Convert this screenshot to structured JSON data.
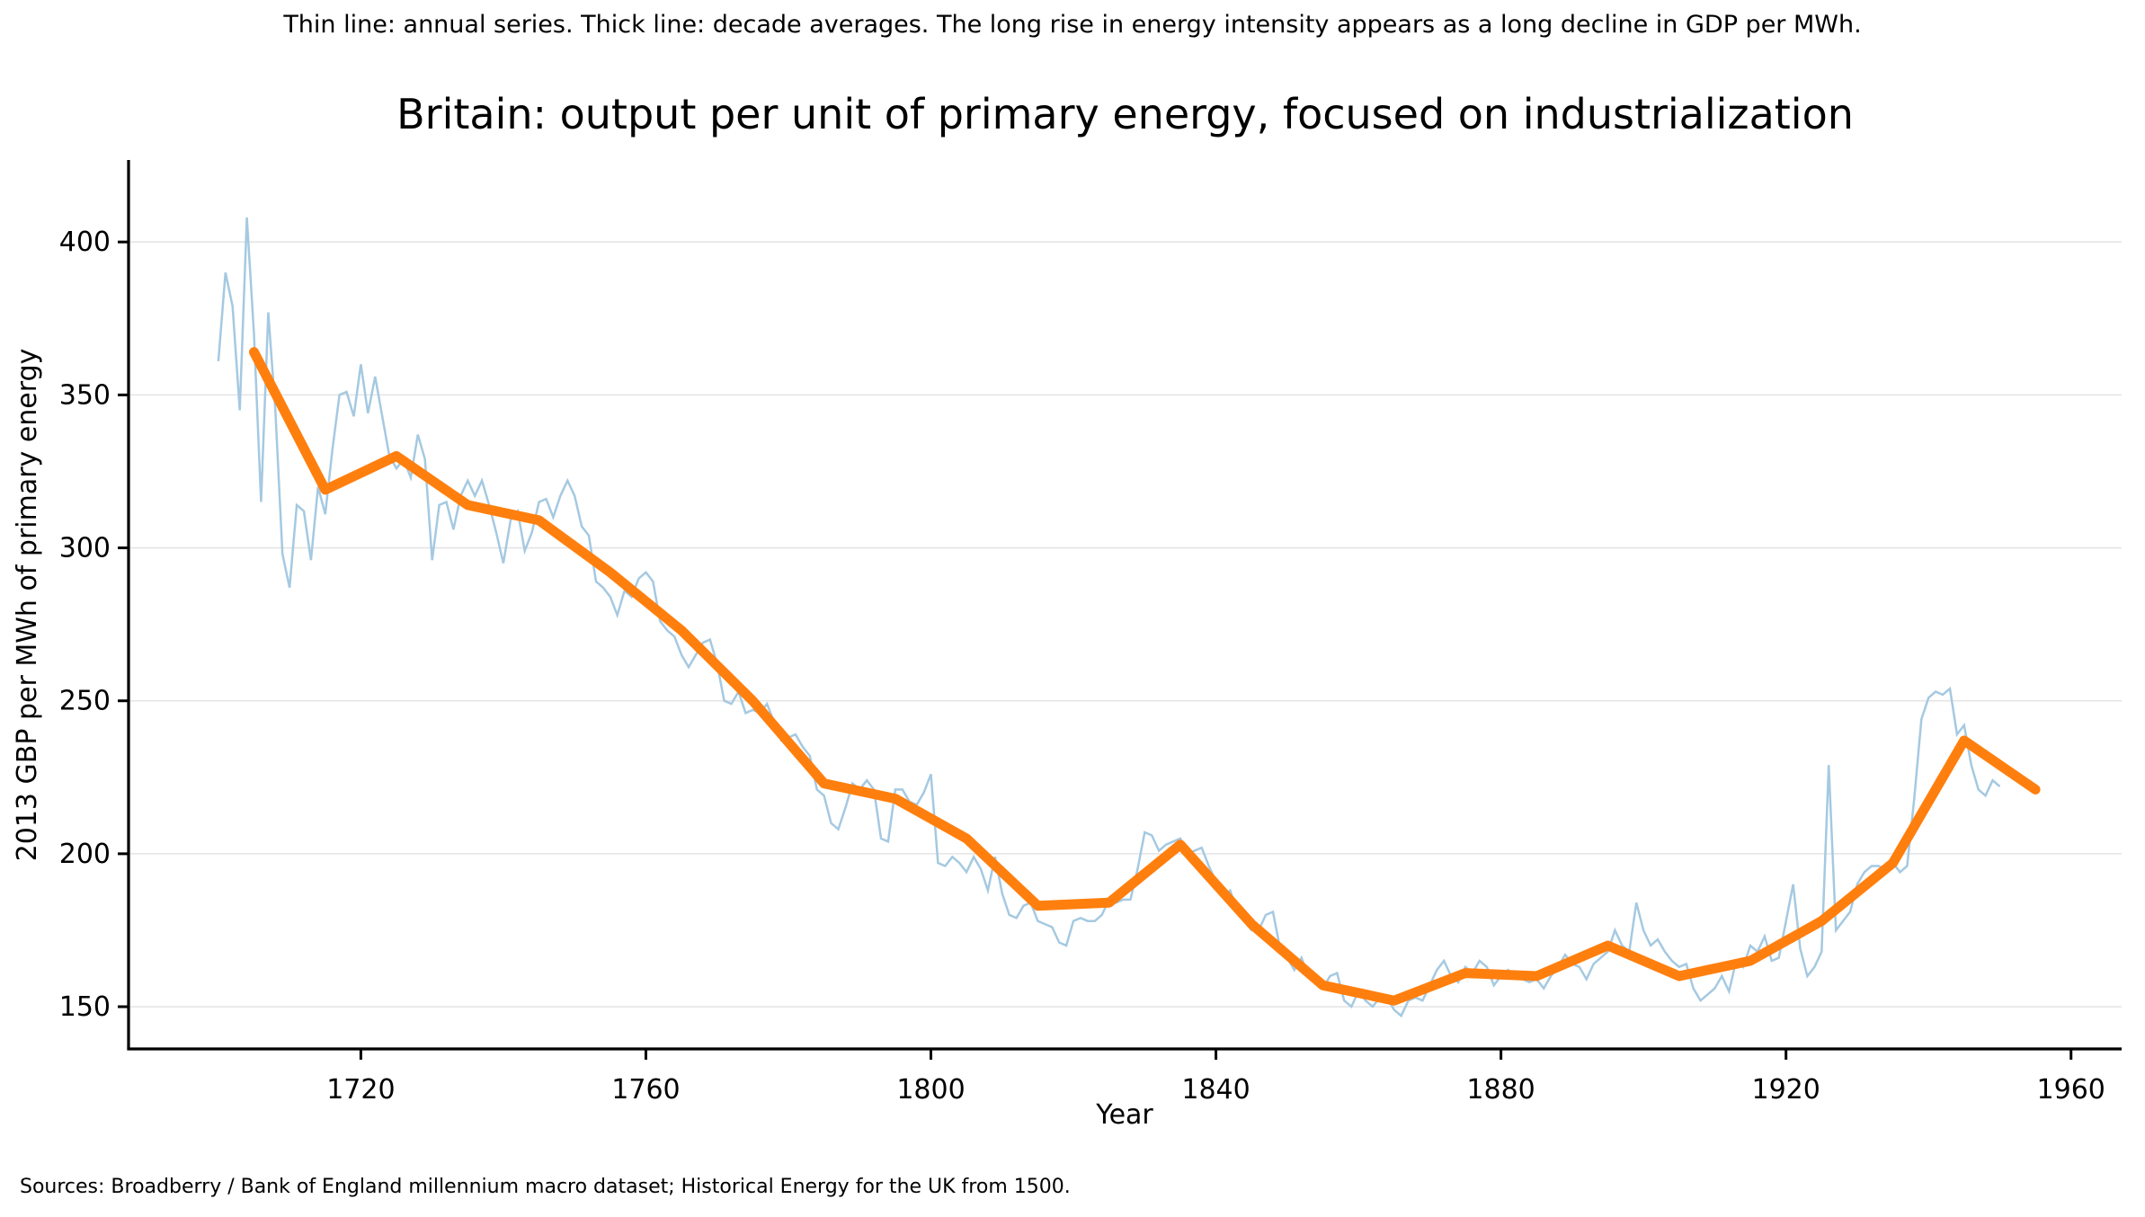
{
  "header": {
    "subtitle": "Thin line: annual series. Thick line: decade averages. The long rise in energy intensity appears as a long decline in GDP per MWh.",
    "title": "Britain: output per unit of primary energy, focused on industrialization"
  },
  "footer": {
    "sources": "Sources: Broadberry / Bank of England millennium macro dataset; Historical Energy for the UK from 1500."
  },
  "colors": {
    "annual_line": "#a5c9e1",
    "decade_line": "#ff7f0e",
    "gridline": "#e5e5e5",
    "axis": "#000000",
    "background": "#ffffff"
  },
  "chart_data": {
    "type": "line",
    "title": "Britain: output per unit of primary energy, focused on industrialization",
    "subtitle": "Thin line: annual series. Thick line: decade averages. The long rise in energy intensity appears as a long decline in GDP per MWh.",
    "xlabel": "Year",
    "ylabel": "2013 GBP per MWh of primary energy",
    "xlim": [
      1687.4,
      1967.1
    ],
    "ylim": [
      136.2,
      426.8
    ],
    "x_ticks": [
      1720,
      1760,
      1800,
      1840,
      1880,
      1920,
      1960
    ],
    "y_ticks": [
      150,
      200,
      250,
      300,
      350,
      400
    ],
    "grid": "horizontal gridlines on, light gray",
    "legend_position": "none (described in subtitle)",
    "series": [
      {
        "name": "annual series",
        "style": "thin",
        "color": "#a5c9e1",
        "stroke_width": 2.5,
        "x_start": 1700,
        "x_step": 1,
        "values": [
          361,
          390,
          379,
          345,
          408,
          370,
          315,
          377,
          345,
          298,
          287,
          314,
          312,
          296,
          320,
          311,
          332,
          350,
          351,
          343,
          360,
          344,
          356,
          343,
          330,
          326,
          329,
          323,
          337,
          329,
          296,
          314,
          315,
          306,
          317,
          322,
          317,
          322,
          314,
          305,
          295,
          309,
          312,
          299,
          305,
          315,
          316,
          310,
          317,
          322,
          317,
          307,
          304,
          289,
          287,
          284,
          278,
          286,
          284,
          290,
          292,
          289,
          276,
          273,
          271,
          265,
          261,
          265,
          269,
          270,
          262,
          250,
          249,
          253,
          246,
          247,
          246,
          249,
          243,
          237,
          238,
          239,
          235,
          232,
          221,
          219,
          210,
          208,
          215,
          223,
          221,
          224,
          221,
          205,
          204,
          221,
          221,
          217,
          216,
          220,
          226,
          197,
          196,
          199,
          197,
          194,
          199,
          195,
          188,
          199,
          187,
          180,
          179,
          183,
          184,
          178,
          177,
          176,
          171,
          170,
          178,
          179,
          178,
          178,
          180,
          185,
          184,
          185,
          185,
          195,
          207,
          206,
          201,
          203,
          204,
          205,
          200,
          201,
          202,
          196,
          191,
          186,
          188,
          181,
          178,
          175,
          175,
          180,
          181,
          169,
          166,
          162,
          166,
          160,
          158,
          156,
          160,
          161,
          152,
          150,
          155,
          152,
          150,
          153,
          153,
          149,
          147,
          152,
          153,
          152,
          157,
          162,
          165,
          160,
          158,
          163,
          161,
          165,
          163,
          157,
          160,
          162,
          160,
          159,
          158,
          159,
          156,
          160,
          163,
          167,
          164,
          163,
          159,
          164,
          166,
          168,
          175,
          170,
          168,
          184,
          175,
          170,
          172,
          168,
          165,
          163,
          164,
          156,
          152,
          154,
          156,
          160,
          155,
          165,
          163,
          170,
          168,
          173,
          165,
          166,
          178,
          190,
          169,
          160,
          163,
          168,
          229,
          175,
          178,
          181,
          190,
          194,
          196,
          196,
          195,
          197,
          194,
          196,
          218,
          244,
          251,
          253,
          252,
          254,
          239,
          242,
          229,
          221,
          219,
          224,
          222
        ]
      },
      {
        "name": "decade averages",
        "style": "thick",
        "color": "#ff7f0e",
        "stroke_width": 11,
        "years": [
          1705,
          1715,
          1725,
          1735,
          1745,
          1755,
          1765,
          1775,
          1785,
          1795,
          1805,
          1815,
          1825,
          1835,
          1845,
          1855,
          1865,
          1875,
          1885,
          1895,
          1905,
          1915,
          1925,
          1935,
          1945,
          1955
        ],
        "values": [
          364,
          319,
          330,
          314,
          309,
          292,
          273,
          250,
          223,
          218,
          205,
          183,
          184,
          203,
          177,
          157,
          152,
          161,
          160,
          170,
          160,
          165,
          178,
          197,
          237,
          221
        ]
      }
    ]
  }
}
